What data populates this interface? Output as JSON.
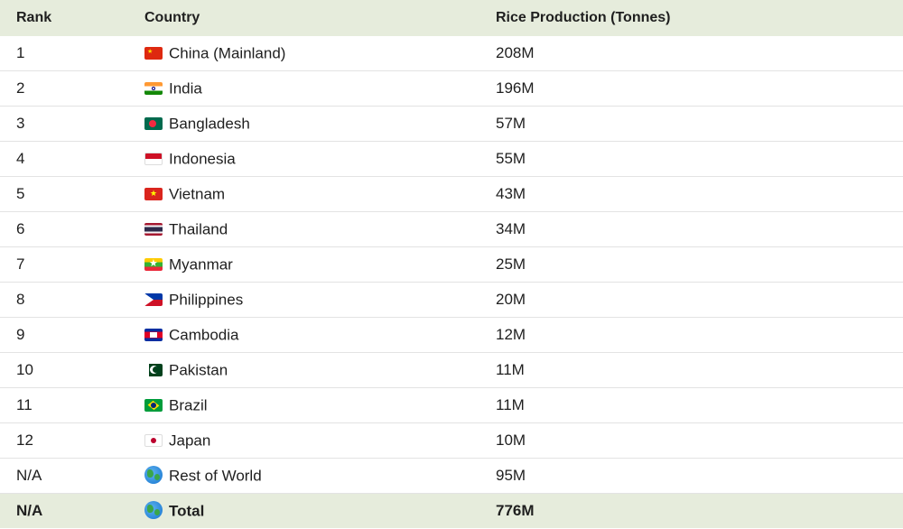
{
  "header": {
    "rank": "Rank",
    "country": "Country",
    "production": "Rice Production (Tonnes)"
  },
  "rows": [
    {
      "rank": "1",
      "country": "China (Mainland)",
      "production": "208M",
      "flag": "china-flag-icon"
    },
    {
      "rank": "2",
      "country": "India",
      "production": "196M",
      "flag": "india-flag-icon"
    },
    {
      "rank": "3",
      "country": "Bangladesh",
      "production": "57M",
      "flag": "bangladesh-flag-icon"
    },
    {
      "rank": "4",
      "country": "Indonesia",
      "production": "55M",
      "flag": "indonesia-flag-icon"
    },
    {
      "rank": "5",
      "country": "Vietnam",
      "production": "43M",
      "flag": "vietnam-flag-icon"
    },
    {
      "rank": "6",
      "country": "Thailand",
      "production": "34M",
      "flag": "thailand-flag-icon"
    },
    {
      "rank": "7",
      "country": "Myanmar",
      "production": "25M",
      "flag": "myanmar-flag-icon"
    },
    {
      "rank": "8",
      "country": "Philippines",
      "production": "20M",
      "flag": "philippines-flag-icon"
    },
    {
      "rank": "9",
      "country": "Cambodia",
      "production": "12M",
      "flag": "cambodia-flag-icon"
    },
    {
      "rank": "10",
      "country": "Pakistan",
      "production": "11M",
      "flag": "pakistan-flag-icon"
    },
    {
      "rank": "11",
      "country": "Brazil",
      "production": "11M",
      "flag": "brazil-flag-icon"
    },
    {
      "rank": "12",
      "country": "Japan",
      "production": "10M",
      "flag": "japan-flag-icon"
    },
    {
      "rank": "N/A",
      "country": "Rest of World",
      "production": "95M",
      "flag": "globe-icon"
    }
  ],
  "total": {
    "rank": "N/A",
    "country": "Total",
    "production": "776M",
    "flag": "globe-icon"
  },
  "colors": {
    "header_bg": "#e6ecdc",
    "total_bg": "#e6ecdc",
    "row_divider": "#e3e3e3"
  }
}
